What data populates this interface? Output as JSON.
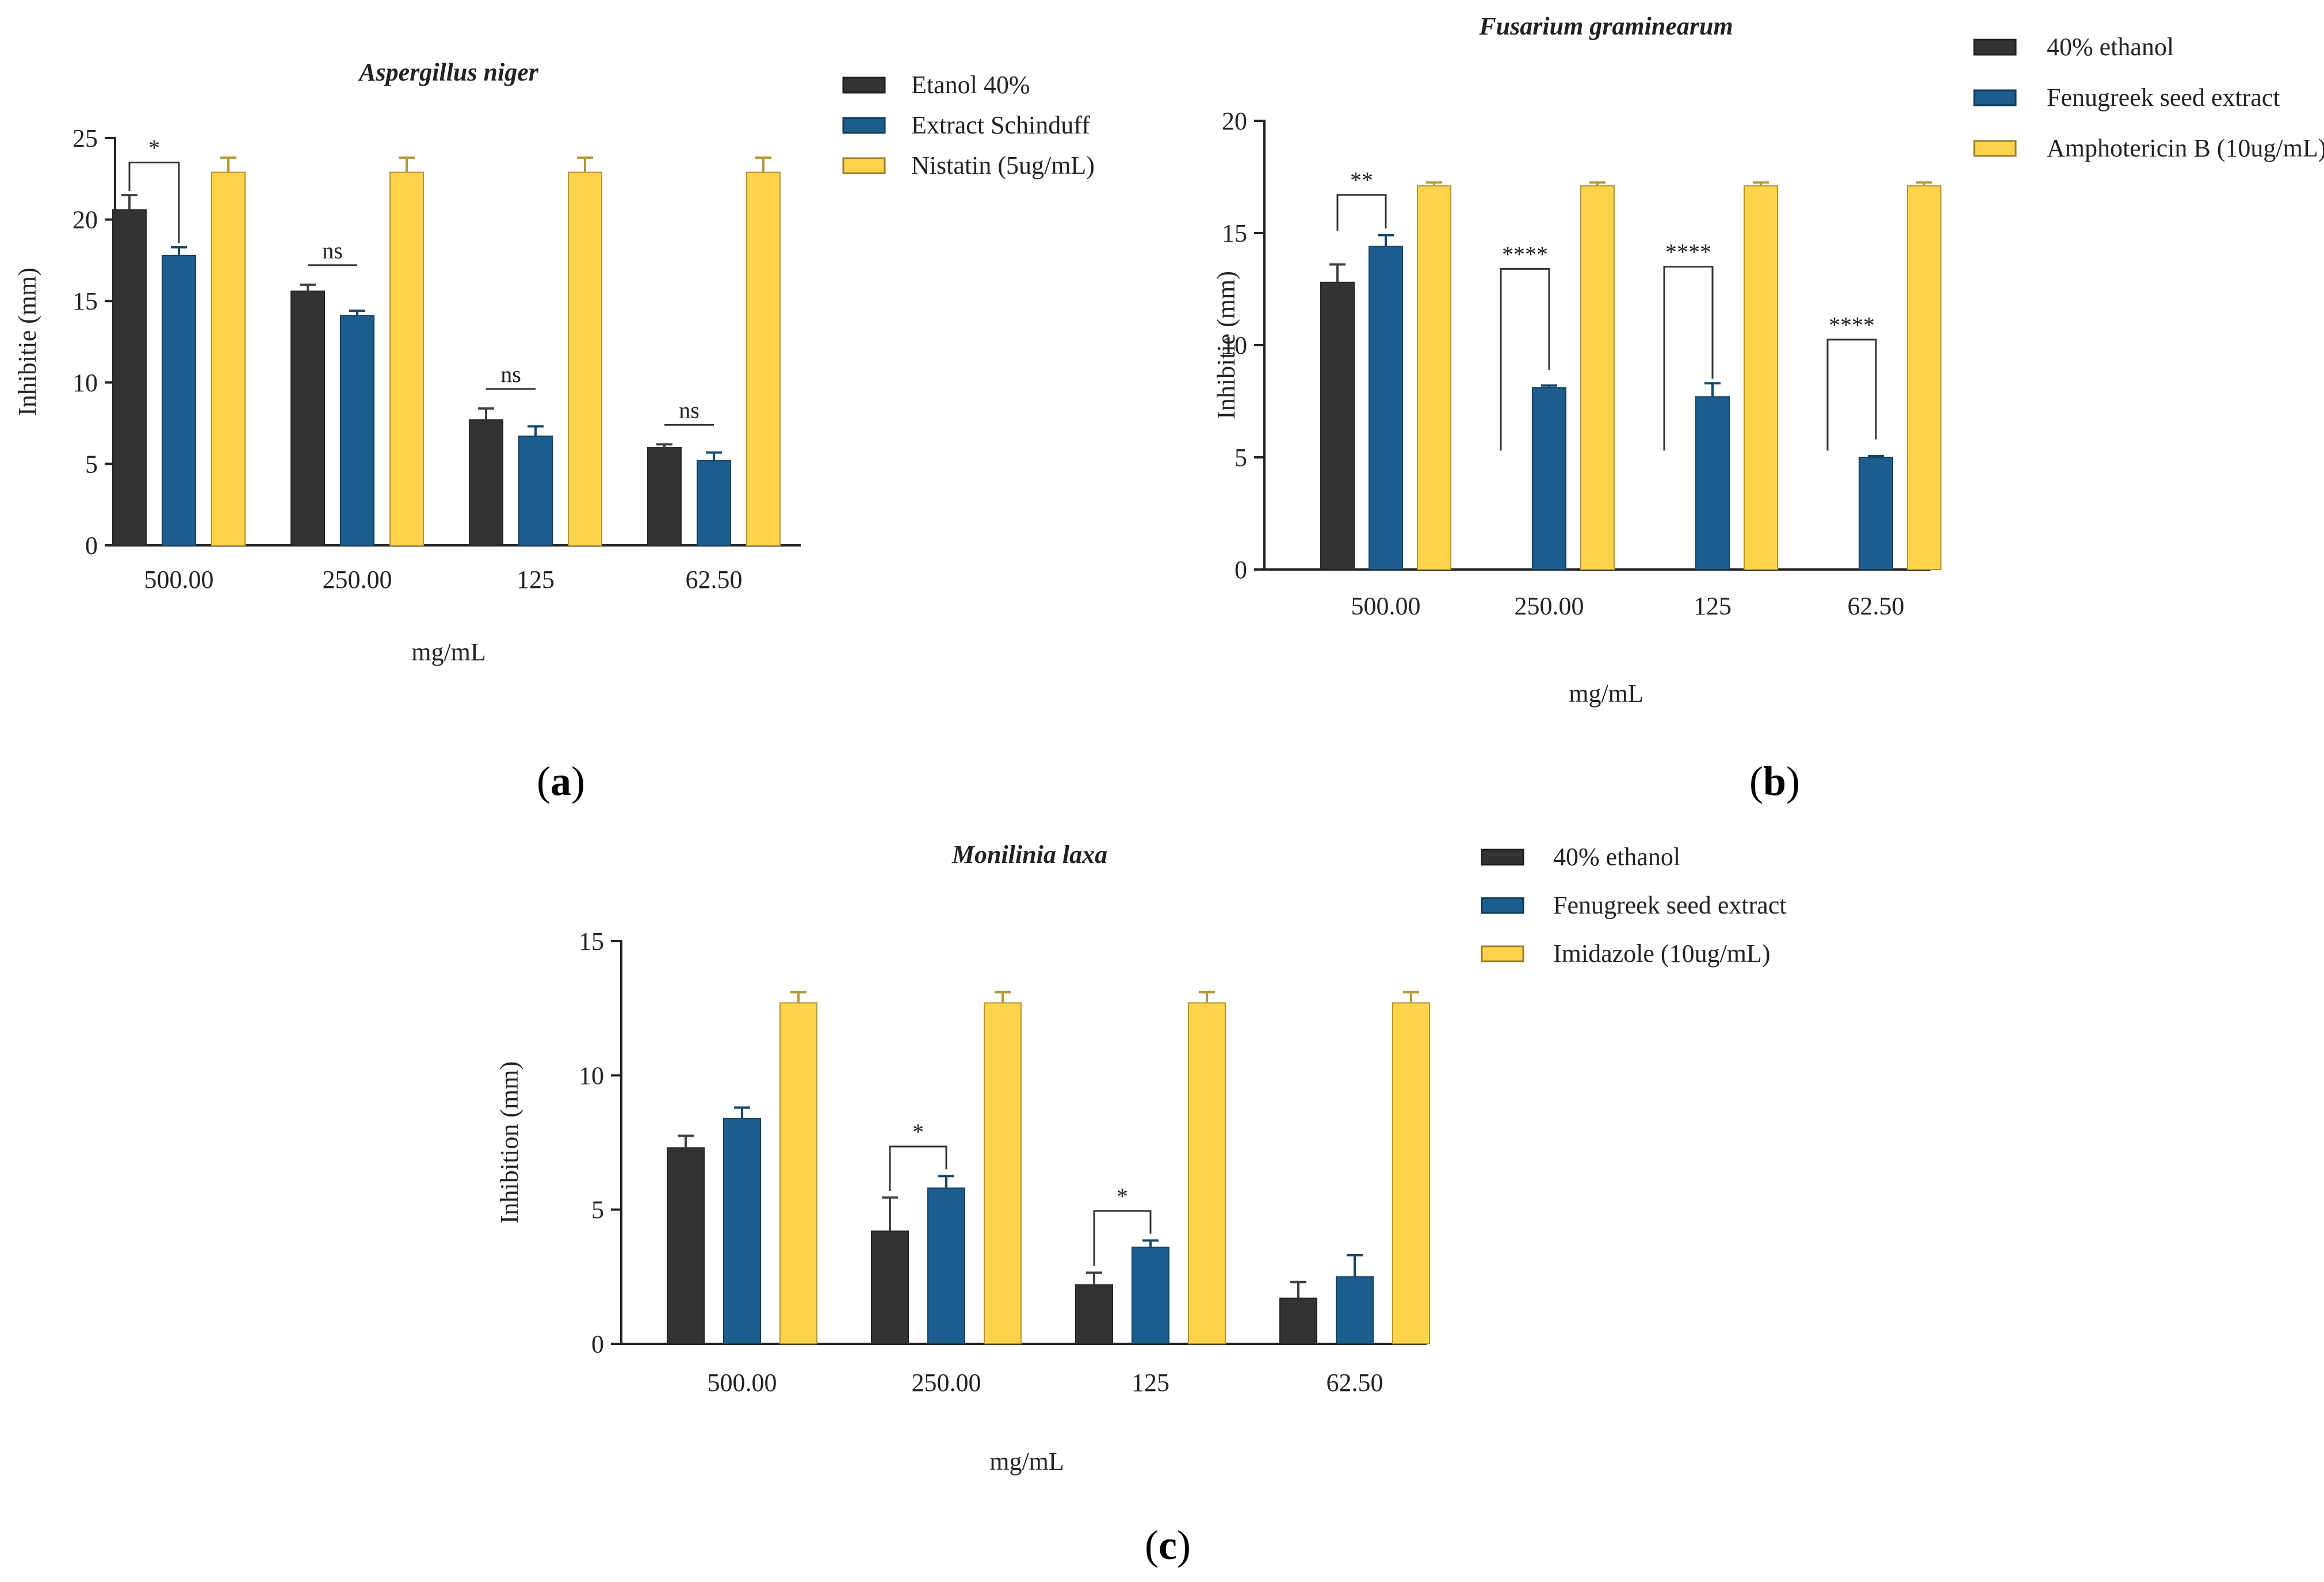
{
  "chart_data": [
    {
      "id": "a",
      "type": "bar",
      "title": "Aspergillus niger",
      "panel_label": "a",
      "xlabel": "mg/mL",
      "ylabel": "Inhibitie (mm)",
      "categories": [
        "500.00",
        "250.00",
        "125",
        "62.50"
      ],
      "ylim": [
        0,
        25
      ],
      "yticks": [
        0,
        5,
        10,
        15,
        20,
        25
      ],
      "series": [
        {
          "name": "Etanol 40%",
          "color": "#333333",
          "values": [
            20.6,
            15.6,
            7.7,
            6.0
          ],
          "errors": [
            0.9,
            0.4,
            0.7,
            0.2
          ]
        },
        {
          "name": "Extract Schinduff",
          "color": "#1d5d8d",
          "values": [
            17.8,
            14.1,
            6.7,
            5.2
          ],
          "errors": [
            0.5,
            0.3,
            0.6,
            0.5
          ]
        },
        {
          "name": "Nistatin (5ug/mL)",
          "color": "#fdd34c",
          "values": [
            22.9,
            22.9,
            22.9,
            22.9
          ],
          "errors": [
            0.9,
            0.9,
            0.9,
            0.9
          ]
        }
      ],
      "annotations": [
        {
          "group": 0,
          "label": "*",
          "style": "bracket"
        },
        {
          "group": 1,
          "label": "ns",
          "style": "line"
        },
        {
          "group": 2,
          "label": "ns",
          "style": "line"
        },
        {
          "group": 3,
          "label": "ns",
          "style": "line"
        }
      ]
    },
    {
      "id": "b",
      "type": "bar",
      "title": "Fusarium graminearum",
      "panel_label": "b",
      "xlabel": "mg/mL",
      "ylabel": "Inhibitie (mm)",
      "categories": [
        "500.00",
        "250.00",
        "125",
        "62.50"
      ],
      "ylim": [
        0,
        20
      ],
      "yticks": [
        0,
        5,
        10,
        15,
        20
      ],
      "series": [
        {
          "name": "40% ethanol",
          "color": "#333333",
          "values": [
            12.8,
            0,
            0,
            0
          ],
          "errors": [
            0.8,
            0,
            0,
            0
          ]
        },
        {
          "name": "Fenugreek seed extract",
          "color": "#1d5d8d",
          "values": [
            14.4,
            8.1,
            7.7,
            5.0
          ],
          "errors": [
            0.5,
            0.1,
            0.6,
            0.05
          ]
        },
        {
          "name": "Amphotericin B (10ug/mL)",
          "color": "#fdd34c",
          "values": [
            17.1,
            17.1,
            17.1,
            17.1
          ],
          "errors": [
            0.15,
            0.15,
            0.15,
            0.15
          ]
        }
      ],
      "annotations": [
        {
          "group": 0,
          "label": "**",
          "style": "bracket"
        },
        {
          "group": 1,
          "label": "****",
          "style": "bracket"
        },
        {
          "group": 2,
          "label": "****",
          "style": "bracket"
        },
        {
          "group": 3,
          "label": "****",
          "style": "bracket"
        }
      ]
    },
    {
      "id": "c",
      "type": "bar",
      "title": "Monilinia laxa",
      "panel_label": "c",
      "xlabel": "mg/mL",
      "ylabel": "Inhibition  (mm)",
      "categories": [
        "500.00",
        "250.00",
        "125",
        "62.50"
      ],
      "ylim": [
        0,
        15
      ],
      "yticks": [
        0,
        5,
        10,
        15
      ],
      "series": [
        {
          "name": "40% ethanol",
          "color": "#333333",
          "values": [
            7.3,
            4.2,
            2.2,
            1.7
          ],
          "errors": [
            0.45,
            1.25,
            0.45,
            0.6
          ]
        },
        {
          "name": "Fenugreek seed extract",
          "color": "#1d5d8d",
          "values": [
            8.4,
            5.8,
            3.6,
            2.5
          ],
          "errors": [
            0.4,
            0.45,
            0.25,
            0.8
          ]
        },
        {
          "name": "Imidazole (10ug/mL)",
          "color": "#fdd34c",
          "values": [
            12.7,
            12.7,
            12.7,
            12.7
          ],
          "errors": [
            0.4,
            0.4,
            0.4,
            0.4
          ]
        }
      ],
      "annotations": [
        {
          "group": 1,
          "label": "*",
          "style": "bracket"
        },
        {
          "group": 2,
          "label": "*",
          "style": "bracket"
        }
      ]
    }
  ]
}
